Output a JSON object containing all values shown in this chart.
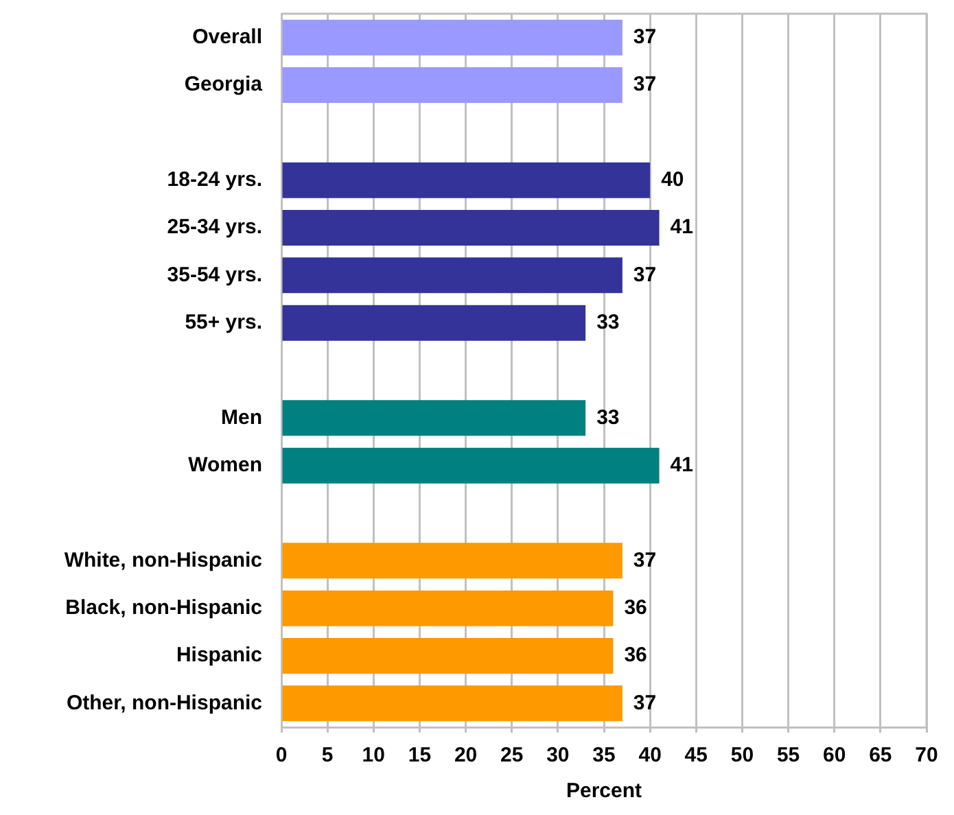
{
  "chart_data": {
    "type": "bar",
    "orientation": "horizontal",
    "xlabel": "Percent",
    "categories": [
      "Overall",
      "Georgia",
      null,
      "18-24 yrs.",
      "25-34 yrs.",
      "35-54 yrs.",
      "55+ yrs.",
      null,
      "Men",
      "Women",
      null,
      "White, non-Hispanic",
      "Black, non-Hispanic",
      "Hispanic",
      "Other, non-Hispanic"
    ],
    "values": [
      37,
      37,
      null,
      40,
      41,
      37,
      33,
      null,
      33,
      41,
      null,
      37,
      36,
      36,
      37
    ],
    "colors": [
      "#9999ff",
      "#9999ff",
      null,
      "#333399",
      "#333399",
      "#333399",
      "#333399",
      null,
      "#008080",
      "#008080",
      null,
      "#ff9900",
      "#ff9900",
      "#ff9900",
      "#ff9900"
    ],
    "xlim": [
      0,
      70
    ],
    "xticks": [
      0,
      5,
      10,
      15,
      20,
      25,
      30,
      35,
      40,
      45,
      50,
      55,
      60,
      65,
      70
    ],
    "grid": "x",
    "data_labels": true,
    "legend": false
  }
}
